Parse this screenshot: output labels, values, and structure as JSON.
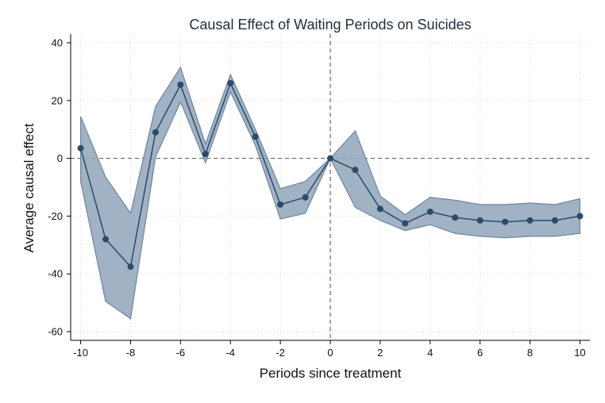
{
  "chart_data": {
    "type": "line",
    "title": "Causal Effect of Waiting Periods on Suicides",
    "xlabel": "Periods since treatment",
    "ylabel": "Average causal effect",
    "xlim": [
      -10.4,
      10.4
    ],
    "ylim": [
      -63,
      43
    ],
    "x_ticks": [
      -10,
      -8,
      -6,
      -4,
      -2,
      0,
      2,
      4,
      6,
      8,
      10
    ],
    "y_ticks": [
      40,
      20,
      0,
      -20,
      -40,
      -60
    ],
    "grid": true,
    "reference_lines": {
      "x": 0,
      "y": 0
    },
    "colors": {
      "line": "#2b4a6b",
      "band": "#8fa5b8",
      "band_edge": "#6f879c",
      "grid": "#d3d3d3",
      "ref": "#666666"
    },
    "series": [
      {
        "x": [
          -10,
          -9,
          -8,
          -7,
          -6,
          -5,
          -4,
          -3,
          -2,
          -1,
          0,
          1,
          2,
          3,
          4,
          5,
          6,
          7,
          8,
          9,
          10
        ],
        "values": [
          3.5,
          -28,
          -37.5,
          9,
          25.5,
          1.5,
          26,
          7.5,
          -16,
          -13.5,
          0,
          -4,
          -17.5,
          -22.5,
          -18.5,
          -20.5,
          -21.5,
          -22,
          -21.5,
          -21.5,
          -20
        ],
        "upper": [
          14.5,
          -6.5,
          -19,
          18,
          31.5,
          5,
          29,
          10,
          -10.5,
          -8,
          0,
          9.5,
          -13,
          -19.5,
          -13.5,
          -14.5,
          -16,
          -16,
          -15.5,
          -16,
          -14
        ],
        "lower": [
          -8,
          -49.5,
          -55.5,
          0.5,
          19.5,
          -1.5,
          23,
          4.5,
          -21,
          -19,
          0,
          -17,
          -21.5,
          -25,
          -23,
          -26,
          -27,
          -27.5,
          -27,
          -27,
          -26
        ]
      }
    ]
  }
}
